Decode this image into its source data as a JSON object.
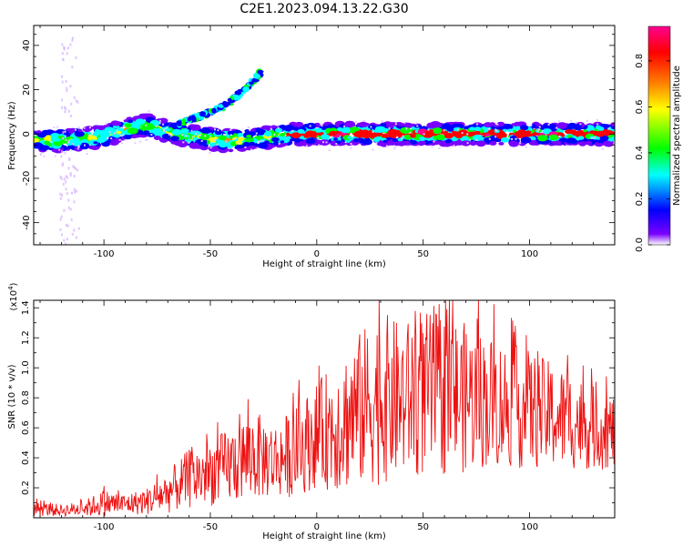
{
  "title": "C2E1.2023.094.13.22.G30",
  "chart_data": [
    {
      "type": "heatmap",
      "title": "C2E1.2023.094.13.22.G30",
      "xlabel": "Height of straight line (km)",
      "ylabel": "Frequency (Hz)",
      "xlim": [
        -133,
        140
      ],
      "ylim": [
        -50,
        49
      ],
      "xticks": [
        -100,
        -50,
        0,
        50,
        100
      ],
      "yticks": [
        -40,
        -20,
        0,
        20,
        40
      ],
      "colorbar": {
        "label": "Normalized spectral amplitude",
        "range": [
          0.0,
          0.95
        ],
        "ticks": [
          "0.0",
          "0.2",
          "0.4",
          "0.6",
          "0.8"
        ],
        "colormap": [
          "#ffffff",
          "#6a00ff",
          "#0000ff",
          "#00ffff",
          "#00ff00",
          "#ffff00",
          "#ff8000",
          "#ff0000",
          "#ff0080"
        ]
      },
      "features": {
        "main_band_center_hz": [
          [
            -133,
            -3
          ],
          [
            -120,
            -3
          ],
          [
            -110,
            -2
          ],
          [
            -100,
            -1
          ],
          [
            -90,
            2
          ],
          [
            -80,
            4
          ],
          [
            -70,
            1
          ],
          [
            -60,
            -1
          ],
          [
            -50,
            -2
          ],
          [
            -40,
            -3
          ],
          [
            -30,
            -2
          ],
          [
            -20,
            -1
          ],
          [
            -10,
            0
          ],
          [
            0,
            0
          ],
          [
            20,
            0
          ],
          [
            40,
            0
          ],
          [
            60,
            0
          ],
          [
            80,
            0
          ],
          [
            100,
            0
          ],
          [
            120,
            0
          ],
          [
            140,
            0
          ]
        ],
        "rising_arc_hz": [
          [
            -65,
            5
          ],
          [
            -60,
            6
          ],
          [
            -55,
            8
          ],
          [
            -50,
            10
          ],
          [
            -45,
            12
          ],
          [
            -40,
            15
          ],
          [
            -35,
            19
          ],
          [
            -30,
            24
          ],
          [
            -26,
            28
          ]
        ],
        "vertical_streak_km": [
          -121,
          -112
        ]
      }
    },
    {
      "type": "line",
      "xlabel": "Height of straight line (km)",
      "ylabel": "SNR (10 * v/v)",
      "multiplier_label": "(x10",
      "multiplier_exp": "4",
      "xlim": [
        -133,
        140
      ],
      "ylim": [
        0.0,
        1.45
      ],
      "xticks": [
        -100,
        -50,
        0,
        50,
        100
      ],
      "yticks": [
        "0.2",
        "0.4",
        "0.6",
        "0.8",
        "1.0",
        "1.2",
        "1.4"
      ],
      "line_color": "#ee1111",
      "series": [
        {
          "envelope": {
            "x": [
              -133,
              -120,
              -110,
              -100,
              -90,
              -80,
              -70,
              -60,
              -50,
              -40,
              -30,
              -20,
              -10,
              0,
              10,
              20,
              30,
              40,
              50,
              60,
              70,
              80,
              90,
              100,
              110,
              120,
              130,
              140
            ],
            "mean": [
              0.06,
              0.05,
              0.06,
              0.1,
              0.09,
              0.11,
              0.17,
              0.26,
              0.3,
              0.35,
              0.42,
              0.38,
              0.44,
              0.55,
              0.62,
              0.72,
              0.8,
              0.78,
              0.82,
              0.83,
              0.8,
              0.78,
              0.75,
              0.72,
              0.68,
              0.65,
              0.6,
              0.57
            ],
            "amp": [
              0.05,
              0.04,
              0.05,
              0.09,
              0.07,
              0.09,
              0.14,
              0.2,
              0.22,
              0.26,
              0.3,
              0.25,
              0.3,
              0.35,
              0.45,
              0.52,
              0.58,
              0.52,
              0.55,
              0.55,
              0.5,
              0.45,
              0.42,
              0.4,
              0.36,
              0.33,
              0.28,
              0.25
            ]
          }
        }
      ]
    }
  ]
}
